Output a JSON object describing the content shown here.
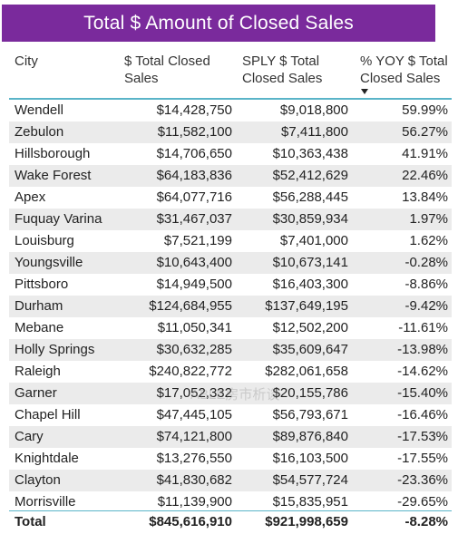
{
  "title": "Total $ Amount of Closed Sales",
  "colors": {
    "title_background": "#7a2a9c",
    "title_text": "#ffffff",
    "header_rule": "#5ab4c8",
    "alt_row": "#ebebeb"
  },
  "table": {
    "headers": {
      "city": "City",
      "total_line1": "$ Total Closed",
      "total_line2": "Sales",
      "sply_line1": "SPLY $ Total",
      "sply_line2": "Closed Sales",
      "yoy_line1": "% YOY $ Total",
      "yoy_line2": "Closed Sales"
    },
    "sort_icon": "sort-descending-icon",
    "rows": [
      {
        "city": "Wendell",
        "total": "$14,428,750",
        "sply": "$9,018,800",
        "yoy": "59.99%"
      },
      {
        "city": "Zebulon",
        "total": "$11,582,100",
        "sply": "$7,411,800",
        "yoy": "56.27%"
      },
      {
        "city": "Hillsborough",
        "total": "$14,706,650",
        "sply": "$10,363,438",
        "yoy": "41.91%"
      },
      {
        "city": "Wake Forest",
        "total": "$64,183,836",
        "sply": "$52,412,629",
        "yoy": "22.46%"
      },
      {
        "city": "Apex",
        "total": "$64,077,716",
        "sply": "$56,288,445",
        "yoy": "13.84%"
      },
      {
        "city": "Fuquay Varina",
        "total": "$31,467,037",
        "sply": "$30,859,934",
        "yoy": "1.97%"
      },
      {
        "city": "Louisburg",
        "total": "$7,521,199",
        "sply": "$7,401,000",
        "yoy": "1.62%"
      },
      {
        "city": "Youngsville",
        "total": "$10,643,400",
        "sply": "$10,673,141",
        "yoy": "-0.28%"
      },
      {
        "city": "Pittsboro",
        "total": "$14,949,500",
        "sply": "$16,403,300",
        "yoy": "-8.86%"
      },
      {
        "city": "Durham",
        "total": "$124,684,955",
        "sply": "$137,649,195",
        "yoy": "-9.42%"
      },
      {
        "city": "Mebane",
        "total": "$11,050,341",
        "sply": "$12,502,200",
        "yoy": "-11.61%"
      },
      {
        "city": "Holly Springs",
        "total": "$30,632,285",
        "sply": "$35,609,647",
        "yoy": "-13.98%"
      },
      {
        "city": "Raleigh",
        "total": "$240,822,772",
        "sply": "$282,061,658",
        "yoy": "-14.62%"
      },
      {
        "city": "Garner",
        "total": "$17,052,332",
        "sply": "$20,155,786",
        "yoy": "-15.40%"
      },
      {
        "city": "Chapel Hill",
        "total": "$47,445,105",
        "sply": "$56,793,671",
        "yoy": "-16.46%"
      },
      {
        "city": "Cary",
        "total": "$74,121,800",
        "sply": "$89,876,840",
        "yoy": "-17.53%"
      },
      {
        "city": "Knightdale",
        "total": "$13,276,550",
        "sply": "$16,103,500",
        "yoy": "-17.55%"
      },
      {
        "city": "Clayton",
        "total": "$41,830,682",
        "sply": "$54,577,724",
        "yoy": "-23.36%"
      },
      {
        "city": "Morrisville",
        "total": "$11,139,900",
        "sply": "$15,835,951",
        "yoy": "-29.65%"
      }
    ],
    "total": {
      "label": "Total",
      "total": "$845,616,910",
      "sply": "$921,998,659",
      "yoy": "-8.28%"
    }
  },
  "watermark": "ABLE房市析谈"
}
